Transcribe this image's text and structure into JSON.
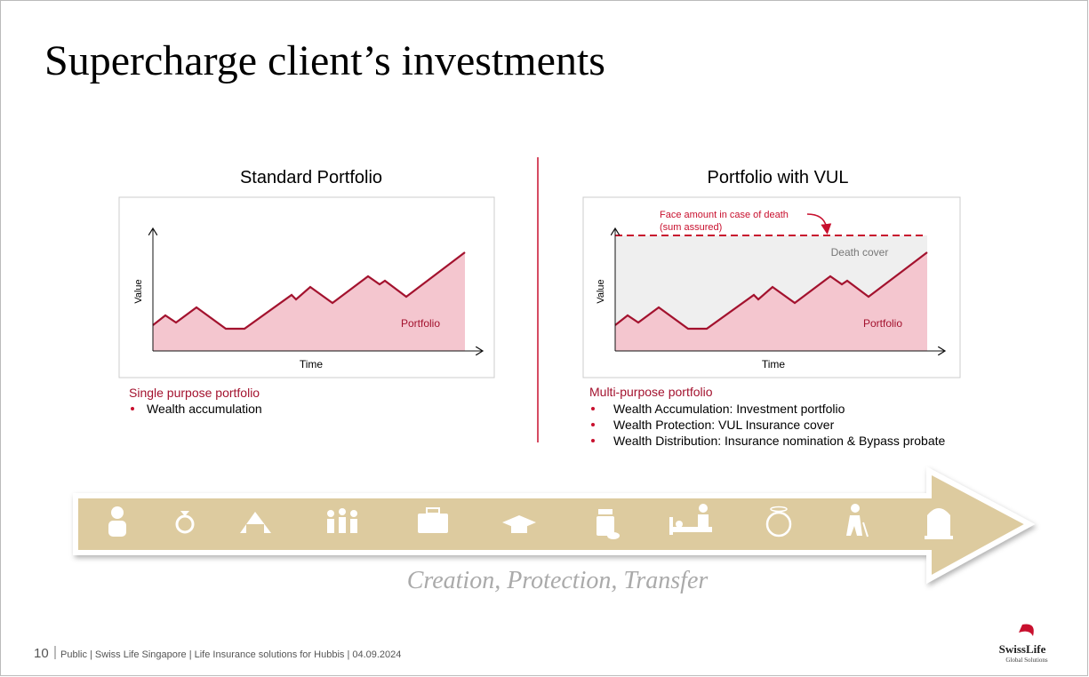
{
  "title": "Supercharge client’s investments",
  "left": {
    "heading": "Standard Portfolio",
    "y_label": "Value",
    "x_label": "Time",
    "area_label": "Portfolio",
    "subtitle": "Single purpose portfolio",
    "bullets": [
      "Wealth accumulation"
    ]
  },
  "right": {
    "heading": "Portfolio with VUL",
    "y_label": "Value",
    "x_label": "Time",
    "area_label": "Portfolio",
    "cover_label": "Death cover",
    "annotation": [
      "Face amount in case of death",
      "(sum assured)"
    ],
    "subtitle": "Multi-purpose portfolio",
    "bullets": [
      "Wealth Accumulation: Investment portfolio",
      "Wealth Protection: VUL Insurance cover",
      "Wealth Distribution: Insurance nomination & Bypass probate"
    ]
  },
  "arrow_caption": "Creation, Protection, Transfer",
  "footer": {
    "page": "10",
    "text": "Public | Swiss Life Singapore | Life Insurance solutions for Hubbis | 04.09.2024"
  },
  "logo": {
    "name": "SwissLife",
    "tagline": "Global Solutions"
  }
}
